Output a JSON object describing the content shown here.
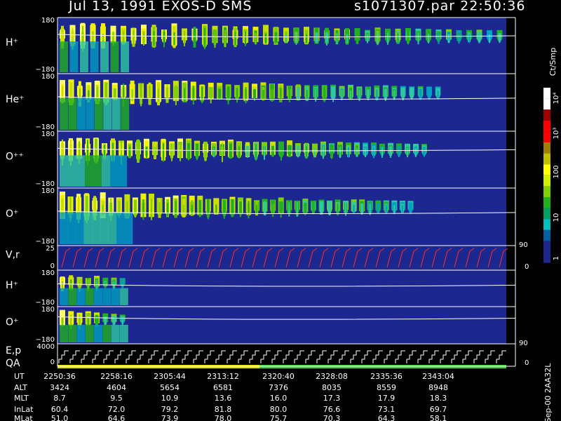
{
  "header": {
    "left": "Jul 13, 1991   EXOS-D SMS",
    "right": "s1071307.par  22:50:36"
  },
  "panels": [
    {
      "label": "H⁺",
      "top": "180",
      "bottom": "−180"
    },
    {
      "label": "He⁺",
      "top": "180",
      "bottom": "−180"
    },
    {
      "label": "O⁺⁺",
      "top": "180",
      "bottom": "−180"
    },
    {
      "label": "O⁺",
      "top": "180",
      "bottom": "−180"
    },
    {
      "label": "V,r",
      "top": "25",
      "bottom": "0",
      "right_top": "90",
      "right_bottom": "0"
    },
    {
      "label": "H⁺",
      "top": "180",
      "bottom": "−180"
    },
    {
      "label": "O⁺",
      "top": "180",
      "bottom": "−180"
    },
    {
      "label": "E,p",
      "label2": "QA",
      "top": "4000",
      "bottom": "0",
      "right_top": "90",
      "right_bottom": "0"
    }
  ],
  "colorbar": {
    "title": "Ct/Smp",
    "labels": [
      "10⁴",
      "10³",
      "100",
      "10",
      "1"
    ]
  },
  "table": {
    "rows": [
      {
        "name": "UT",
        "cells": [
          "2250:36",
          "2258:16",
          "2305:44",
          "2313:12",
          "2320:40",
          "2328:08",
          "2335:36",
          "2343:04"
        ]
      },
      {
        "name": "ALT",
        "cells": [
          "3424",
          "4604",
          "5654",
          "6581",
          "7376",
          "8035",
          "8559",
          "8948"
        ]
      },
      {
        "name": "MLT",
        "cells": [
          "8.7",
          "9.5",
          "10.9",
          "13.6",
          "16.0",
          "17.3",
          "17.9",
          "18.3"
        ]
      },
      {
        "name": "InLat",
        "cells": [
          "60.4",
          "72.0",
          "79.2",
          "81.8",
          "80.0",
          "76.6",
          "73.1",
          "69.7"
        ]
      },
      {
        "name": "MLat",
        "cells": [
          "51.0",
          "64.6",
          "73.9",
          "78.0",
          "75.7",
          "70.3",
          "64.3",
          "58.1"
        ]
      }
    ]
  },
  "footer": "Sep-00  2AA32L"
}
